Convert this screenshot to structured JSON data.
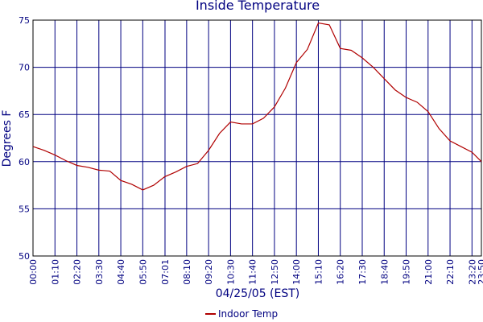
{
  "chart_data": {
    "type": "line",
    "title": "Inside Temperature",
    "x_label": "04/25/05 (EST)",
    "y_label": "Degrees F",
    "x": [
      0,
      35,
      70,
      105,
      140,
      175,
      210,
      245,
      280,
      315,
      350,
      385,
      420,
      455,
      490,
      525,
      560,
      595,
      630,
      665,
      700,
      735,
      770,
      805,
      840,
      875,
      910,
      945,
      980,
      1015,
      1050,
      1085,
      1120,
      1155,
      1190,
      1225,
      1260,
      1295,
      1330,
      1365,
      1400,
      1430
    ],
    "series": [
      {
        "name": "Indoor Temp",
        "color": "#b00000",
        "values": [
          61.6,
          61.2,
          60.7,
          60.1,
          59.6,
          59.4,
          59.1,
          59.0,
          58.0,
          57.6,
          57.0,
          57.5,
          58.4,
          58.9,
          59.5,
          59.8,
          61.2,
          63.0,
          64.2,
          64.0,
          64.0,
          64.6,
          65.8,
          67.8,
          70.5,
          71.9,
          74.7,
          74.5,
          72.0,
          71.8,
          71.0,
          70.0,
          68.8,
          67.6,
          66.8,
          66.3,
          65.3,
          63.5,
          62.2,
          61.6,
          61.0,
          60.0
        ]
      }
    ],
    "xlim": [
      0,
      1430
    ],
    "xticks": [
      {
        "value": 0,
        "label": "00:00"
      },
      {
        "value": 70,
        "label": "01:10"
      },
      {
        "value": 140,
        "label": "02:20"
      },
      {
        "value": 210,
        "label": "03:30"
      },
      {
        "value": 280,
        "label": "04:40"
      },
      {
        "value": 350,
        "label": "05:50"
      },
      {
        "value": 421,
        "label": "07:01"
      },
      {
        "value": 490,
        "label": "08:10"
      },
      {
        "value": 560,
        "label": "09:20"
      },
      {
        "value": 630,
        "label": "10:30"
      },
      {
        "value": 700,
        "label": "11:40"
      },
      {
        "value": 770,
        "label": "12:50"
      },
      {
        "value": 840,
        "label": "14:00"
      },
      {
        "value": 910,
        "label": "15:10"
      },
      {
        "value": 980,
        "label": "16:20"
      },
      {
        "value": 1050,
        "label": "17:30"
      },
      {
        "value": 1120,
        "label": "18:40"
      },
      {
        "value": 1190,
        "label": "19:50"
      },
      {
        "value": 1260,
        "label": "21:00"
      },
      {
        "value": 1330,
        "label": "22:10"
      },
      {
        "value": 1400,
        "label": "23:20"
      },
      {
        "value": 1430,
        "label": "23:50"
      }
    ],
    "ylim": [
      50,
      75
    ],
    "yticks": [
      50,
      55,
      60,
      65,
      70,
      75
    ],
    "grid": true,
    "grid_color": "#000080"
  }
}
